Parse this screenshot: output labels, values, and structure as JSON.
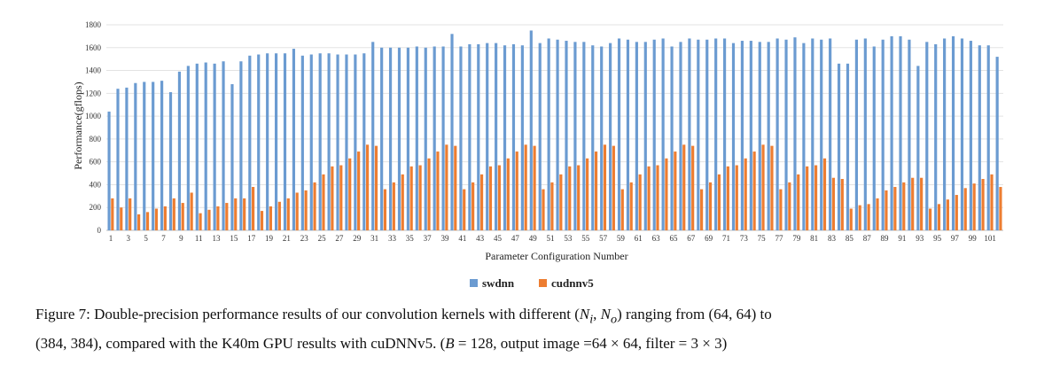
{
  "chart_data": {
    "type": "bar",
    "xlabel": "Parameter Configuration Number",
    "ylabel": "Performance(gflops)",
    "ylim": [
      0,
      1800
    ],
    "yticks": [
      0,
      200,
      400,
      600,
      800,
      1000,
      1200,
      1400,
      1600,
      1800
    ],
    "grid": true,
    "legend_position": "bottom-center",
    "x_tick_labels_shown": "odd numbers 1-101",
    "categories": [
      1,
      2,
      3,
      4,
      5,
      6,
      7,
      8,
      9,
      10,
      11,
      12,
      13,
      14,
      15,
      16,
      17,
      18,
      19,
      20,
      21,
      22,
      23,
      24,
      25,
      26,
      27,
      28,
      29,
      30,
      31,
      32,
      33,
      34,
      35,
      36,
      37,
      38,
      39,
      40,
      41,
      42,
      43,
      44,
      45,
      46,
      47,
      48,
      49,
      50,
      51,
      52,
      53,
      54,
      55,
      56,
      57,
      58,
      59,
      60,
      61,
      62,
      63,
      64,
      65,
      66,
      67,
      68,
      69,
      70,
      71,
      72,
      73,
      74,
      75,
      76,
      77,
      78,
      79,
      80,
      81,
      82,
      83,
      84,
      85,
      86,
      87,
      88,
      89,
      90,
      91,
      92,
      93,
      94,
      95,
      96,
      97,
      98,
      99,
      100,
      101,
      102
    ],
    "series": [
      {
        "name": "swdnn",
        "color": "#6b9bd1",
        "values": [
          1040,
          1240,
          1250,
          1290,
          1300,
          1300,
          1310,
          1210,
          1390,
          1440,
          1460,
          1470,
          1460,
          1480,
          1280,
          1480,
          1530,
          1540,
          1550,
          1550,
          1550,
          1590,
          1530,
          1540,
          1550,
          1550,
          1540,
          1540,
          1540,
          1550,
          1650,
          1600,
          1600,
          1600,
          1600,
          1610,
          1600,
          1610,
          1610,
          1720,
          1610,
          1630,
          1630,
          1640,
          1640,
          1620,
          1630,
          1620,
          1750,
          1640,
          1680,
          1670,
          1660,
          1650,
          1650,
          1620,
          1610,
          1640,
          1680,
          1670,
          1650,
          1650,
          1670,
          1680,
          1610,
          1650,
          1680,
          1670,
          1670,
          1680,
          1680,
          1640,
          1660,
          1660,
          1650,
          1650,
          1680,
          1670,
          1690,
          1640,
          1680,
          1670,
          1680,
          1460,
          1460,
          1670,
          1680,
          1610,
          1670,
          1700,
          1700,
          1670,
          1440,
          1650,
          1630,
          1680,
          1700,
          1680,
          1660,
          1620,
          1620,
          1520
        ]
      },
      {
        "name": "cudnnv5",
        "color": "#ed7d31",
        "values": [
          280,
          200,
          280,
          140,
          160,
          190,
          210,
          280,
          240,
          330,
          150,
          180,
          210,
          240,
          280,
          280,
          380,
          170,
          210,
          250,
          280,
          330,
          350,
          420,
          490,
          560,
          570,
          630,
          690,
          750,
          740,
          360,
          420,
          490,
          560,
          570,
          630,
          690,
          750,
          740,
          360,
          420,
          490,
          560,
          570,
          630,
          690,
          750,
          740,
          360,
          420,
          490,
          560,
          570,
          630,
          690,
          750,
          740,
          360,
          420,
          490,
          560,
          570,
          630,
          690,
          750,
          740,
          360,
          420,
          490,
          560,
          570,
          630,
          690,
          750,
          740,
          360,
          420,
          490,
          560,
          570,
          630,
          460,
          450,
          190,
          220,
          230,
          280,
          350,
          380,
          420,
          460,
          460,
          190,
          230,
          270,
          310,
          370,
          410,
          450,
          490,
          380
        ]
      }
    ]
  },
  "caption": {
    "part1": "Figure 7: Double-precision performance results of our convolution kernels with different (",
    "ni": "N",
    "ni_sub": "i",
    "sep": ", ",
    "no": "N",
    "no_sub": "o",
    "part2": ") ranging from (64, 64) to",
    "part3": "(384, 384), compared with the K40m GPU results with cuDNNv5. (",
    "b": "B",
    "part4": " = 128, output image =64 × 64, filter = 3 × 3)"
  }
}
